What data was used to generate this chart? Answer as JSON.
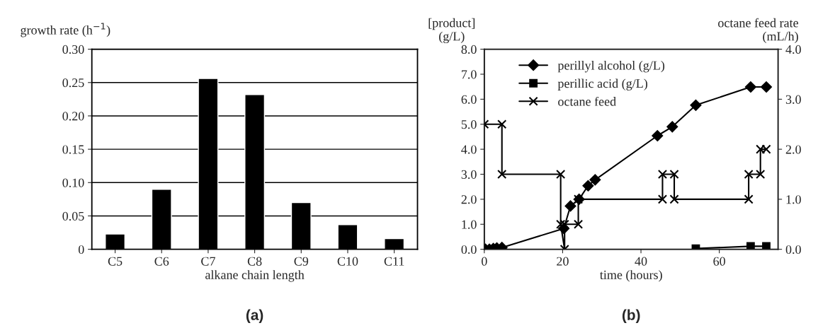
{
  "chart_data": [
    {
      "type": "bar",
      "ylabel": "growth rate (h$^{−1}$)",
      "xlabel": "alkane chain length",
      "categories": [
        "C5",
        "C6",
        "C7",
        "C8",
        "C9",
        "C10",
        "C11"
      ],
      "values": [
        0.023,
        0.09,
        0.256,
        0.232,
        0.07,
        0.037,
        0.016
      ],
      "color": "#000000",
      "ylim": [
        0,
        0.3
      ],
      "yticks": [
        {
          "value": 0,
          "label": "0"
        },
        {
          "value": 0.05,
          "label": "0.05"
        },
        {
          "value": 0.1,
          "label": "0.10"
        },
        {
          "value": 0.15,
          "label": "0.15"
        },
        {
          "value": 0.2,
          "label": "0.20"
        },
        {
          "value": 0.25,
          "label": "0.25"
        },
        {
          "value": 0.3,
          "label": "0.30"
        }
      ],
      "grid": "y",
      "annotations": [
        "(a)"
      ]
    },
    {
      "type": "line",
      "ylabel": "[product]\n(g/L)",
      "y2label": "octane feed rate\n(mL/h)",
      "xlabel": "time (hours)",
      "xlim": [
        0,
        75
      ],
      "xticks": [
        0,
        20,
        40,
        60
      ],
      "ylim": [
        0,
        8
      ],
      "yticks": [
        {
          "value": 0,
          "label": "0.0"
        },
        {
          "value": 1,
          "label": "1.0"
        },
        {
          "value": 2,
          "label": "2.0"
        },
        {
          "value": 3,
          "label": "3.0"
        },
        {
          "value": 4,
          "label": "4.0"
        },
        {
          "value": 5,
          "label": "5.0"
        },
        {
          "value": 6,
          "label": "6.0"
        },
        {
          "value": 7,
          "label": "7.0"
        },
        {
          "value": 8,
          "label": "8.0"
        }
      ],
      "y2lim": [
        0,
        4
      ],
      "y2ticks": [
        {
          "value": 0,
          "label": "0.0"
        },
        {
          "value": 1,
          "label": "1.0"
        },
        {
          "value": 2,
          "label": "2.0"
        },
        {
          "value": 3,
          "label": "3.0"
        },
        {
          "value": 4,
          "label": "4.0"
        }
      ],
      "grid": false,
      "legend": "top left",
      "annotations": [
        "(b)"
      ],
      "series": [
        {
          "name": "perillyl alcohol (g/L)",
          "color": "#000000",
          "marker": "diamond",
          "x": [
            0.3,
            1.3,
            2.3,
            3.2,
            4.5,
            20.3,
            22,
            24.2,
            26.5,
            28.3,
            44.2,
            48,
            54,
            68,
            72
          ],
          "values": [
            0,
            0,
            0.03,
            0.05,
            0.07,
            0.83,
            1.73,
            2.0,
            2.54,
            2.78,
            4.54,
            4.9,
            5.76,
            6.49,
            6.49
          ]
        },
        {
          "name": "perillic acid (g/L)",
          "color": "#000000",
          "marker": "square",
          "x": [
            54,
            68,
            72
          ],
          "values": [
            0.03,
            0.12,
            0.12
          ]
        },
        {
          "name": "octane feed",
          "color": "#000000",
          "marker": "cross",
          "axis": "y2",
          "x": [
            0,
            4.5,
            4.5,
            19.5,
            19.5,
            20.5,
            20.5,
            24,
            24,
            45.5,
            45.5,
            48.5,
            48.5,
            67.5,
            67.5,
            70.5,
            70.5,
            72
          ],
          "values": [
            2.5,
            2.5,
            1.5,
            1.5,
            0.5,
            0,
            0.5,
            0.5,
            1.0,
            1.0,
            1.5,
            1.5,
            1.0,
            1.0,
            1.5,
            1.5,
            2.0,
            2.0
          ]
        }
      ]
    }
  ]
}
